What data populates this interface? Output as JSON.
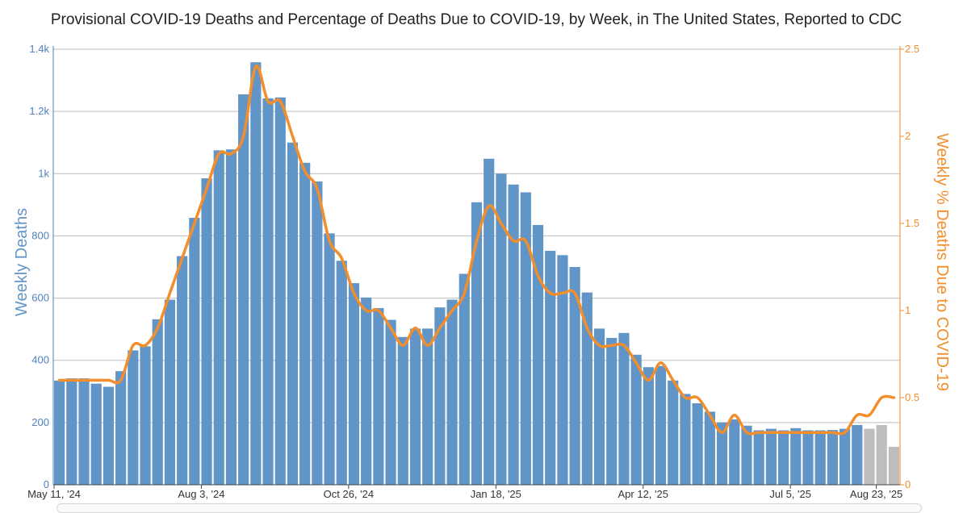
{
  "chart_data": {
    "type": "bar",
    "title": "Provisional COVID-19 Deaths and Percentage of Deaths Due to COVID-19, by Week, in The United States, Reported to CDC",
    "ylabel": "Weekly Deaths",
    "y2label": "Weekly % Deaths Due to COVID-19",
    "ylim": [
      0,
      1400
    ],
    "y2lim": [
      0,
      2.5
    ],
    "y_ticks": [
      0,
      200,
      400,
      600,
      800,
      1000,
      1200,
      1400
    ],
    "y_tick_labels": [
      "0",
      "200",
      "400",
      "600",
      "800",
      "1k",
      "1.2k",
      "1.4k"
    ],
    "y2_ticks": [
      0,
      0.5,
      1,
      1.5,
      2,
      2.5
    ],
    "y2_tick_labels": [
      "0",
      "0.5",
      "1",
      "1.5",
      "2",
      "2.5"
    ],
    "x_ticks": [
      {
        "index": 0,
        "label": "May 11, '24"
      },
      {
        "index": 12,
        "label": "Aug 3, '24"
      },
      {
        "index": 24,
        "label": "Oct 26, '24"
      },
      {
        "index": 36,
        "label": "Jan 18, '25"
      },
      {
        "index": 48,
        "label": "Apr 12, '25"
      },
      {
        "index": 60,
        "label": "Jul 5, '25"
      },
      {
        "index": 67,
        "label": "Aug 23, '25"
      }
    ],
    "series": [
      {
        "name": "Weekly Deaths",
        "kind": "bar",
        "color": "#6295c7",
        "incomplete_color": "#bdbdbd",
        "values": [
          335,
          342,
          342,
          325,
          315,
          365,
          432,
          445,
          532,
          595,
          735,
          858,
          985,
          1075,
          1078,
          1255,
          1358,
          1242,
          1245,
          1100,
          1035,
          975,
          808,
          720,
          648,
          602,
          568,
          530,
          475,
          502,
          502,
          570,
          595,
          678,
          908,
          1048,
          1000,
          965,
          940,
          835,
          752,
          738,
          700,
          618,
          502,
          472,
          488,
          418,
          378,
          382,
          335,
          292,
          262,
          235,
          200,
          210,
          190,
          175,
          180,
          175,
          182,
          175,
          175,
          176,
          180,
          192,
          180,
          192,
          122
        ],
        "incomplete_from_index": 66
      },
      {
        "name": "Weekly % Deaths Due to COVID-19",
        "kind": "line",
        "color": "#f28e2b",
        "values": [
          0.6,
          0.6,
          0.6,
          0.6,
          0.6,
          0.6,
          0.8,
          0.8,
          0.9,
          1.1,
          1.3,
          1.5,
          1.7,
          1.9,
          1.9,
          2.0,
          2.4,
          2.2,
          2.2,
          2.0,
          1.8,
          1.7,
          1.4,
          1.3,
          1.1,
          1.0,
          1.0,
          0.9,
          0.8,
          0.9,
          0.8,
          0.9,
          1.0,
          1.1,
          1.4,
          1.6,
          1.5,
          1.4,
          1.4,
          1.2,
          1.1,
          1.1,
          1.1,
          0.9,
          0.8,
          0.8,
          0.8,
          0.7,
          0.6,
          0.7,
          0.6,
          0.5,
          0.5,
          0.4,
          0.3,
          0.4,
          0.3,
          0.3,
          0.3,
          0.3,
          0.3,
          0.3,
          0.3,
          0.3,
          0.3,
          0.4,
          0.4,
          0.5,
          0.5
        ]
      }
    ]
  }
}
